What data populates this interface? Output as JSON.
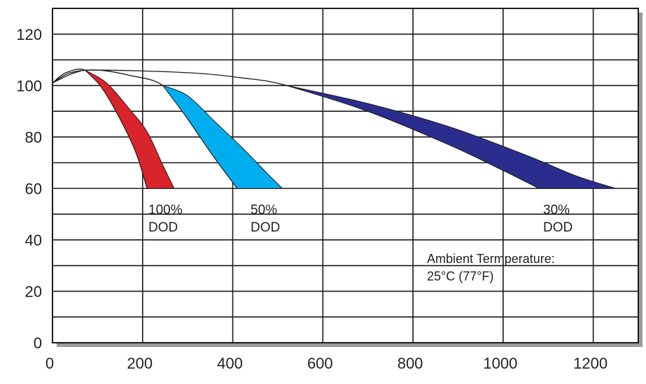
{
  "chart_data": {
    "type": "area",
    "title": "",
    "xlabel": "",
    "ylabel": "",
    "xlim": [
      0,
      1300
    ],
    "ylim": [
      0,
      130
    ],
    "xticks": [
      "0",
      "200",
      "400",
      "600",
      "800",
      "1000",
      "1200"
    ],
    "yticks": [
      "0",
      "20",
      "40",
      "60",
      "80",
      "100",
      "120"
    ],
    "grid": true,
    "series": [
      {
        "name": "100% DOD",
        "color": "#d8242a",
        "label_lines": [
          "100%",
          "DOD"
        ],
        "upper": [
          [
            0,
            101
          ],
          [
            30,
            105
          ],
          [
            72,
            106
          ],
          [
            110,
            99
          ],
          [
            150,
            87
          ],
          [
            185,
            74
          ],
          [
            210,
            60
          ]
        ],
        "lower": [
          [
            72,
            106
          ],
          [
            120,
            101
          ],
          [
            170,
            91
          ],
          [
            210,
            82
          ],
          [
            245,
            69
          ],
          [
            270,
            60
          ]
        ]
      },
      {
        "name": "50% DOD",
        "color": "#00aeef",
        "label_lines": [
          "50%",
          "DOD"
        ],
        "upper": [
          [
            0,
            101
          ],
          [
            40,
            105
          ],
          [
            100,
            106
          ],
          [
            170,
            104
          ],
          [
            245,
            100
          ],
          [
            300,
            87
          ],
          [
            355,
            73
          ],
          [
            410,
            60
          ]
        ],
        "lower": [
          [
            245,
            100
          ],
          [
            300,
            96
          ],
          [
            360,
            86
          ],
          [
            420,
            76
          ],
          [
            470,
            67
          ],
          [
            510,
            60
          ]
        ]
      },
      {
        "name": "30% DOD",
        "color": "#2b2d8e",
        "label_lines": [
          "30%",
          "DOD"
        ],
        "upper": [
          [
            0,
            101
          ],
          [
            50,
            105
          ],
          [
            100,
            106
          ],
          [
            300,
            105
          ],
          [
            420,
            103
          ],
          [
            520,
            100
          ],
          [
            700,
            90
          ],
          [
            880,
            77
          ],
          [
            1000,
            67
          ],
          [
            1080,
            60
          ]
        ],
        "lower": [
          [
            520,
            100
          ],
          [
            700,
            93
          ],
          [
            880,
            84
          ],
          [
            1050,
            73
          ],
          [
            1160,
            65
          ],
          [
            1250,
            60
          ]
        ]
      }
    ],
    "annotation_lines": [
      "Ambient Termperature:",
      "25°C (77°F)"
    ]
  }
}
